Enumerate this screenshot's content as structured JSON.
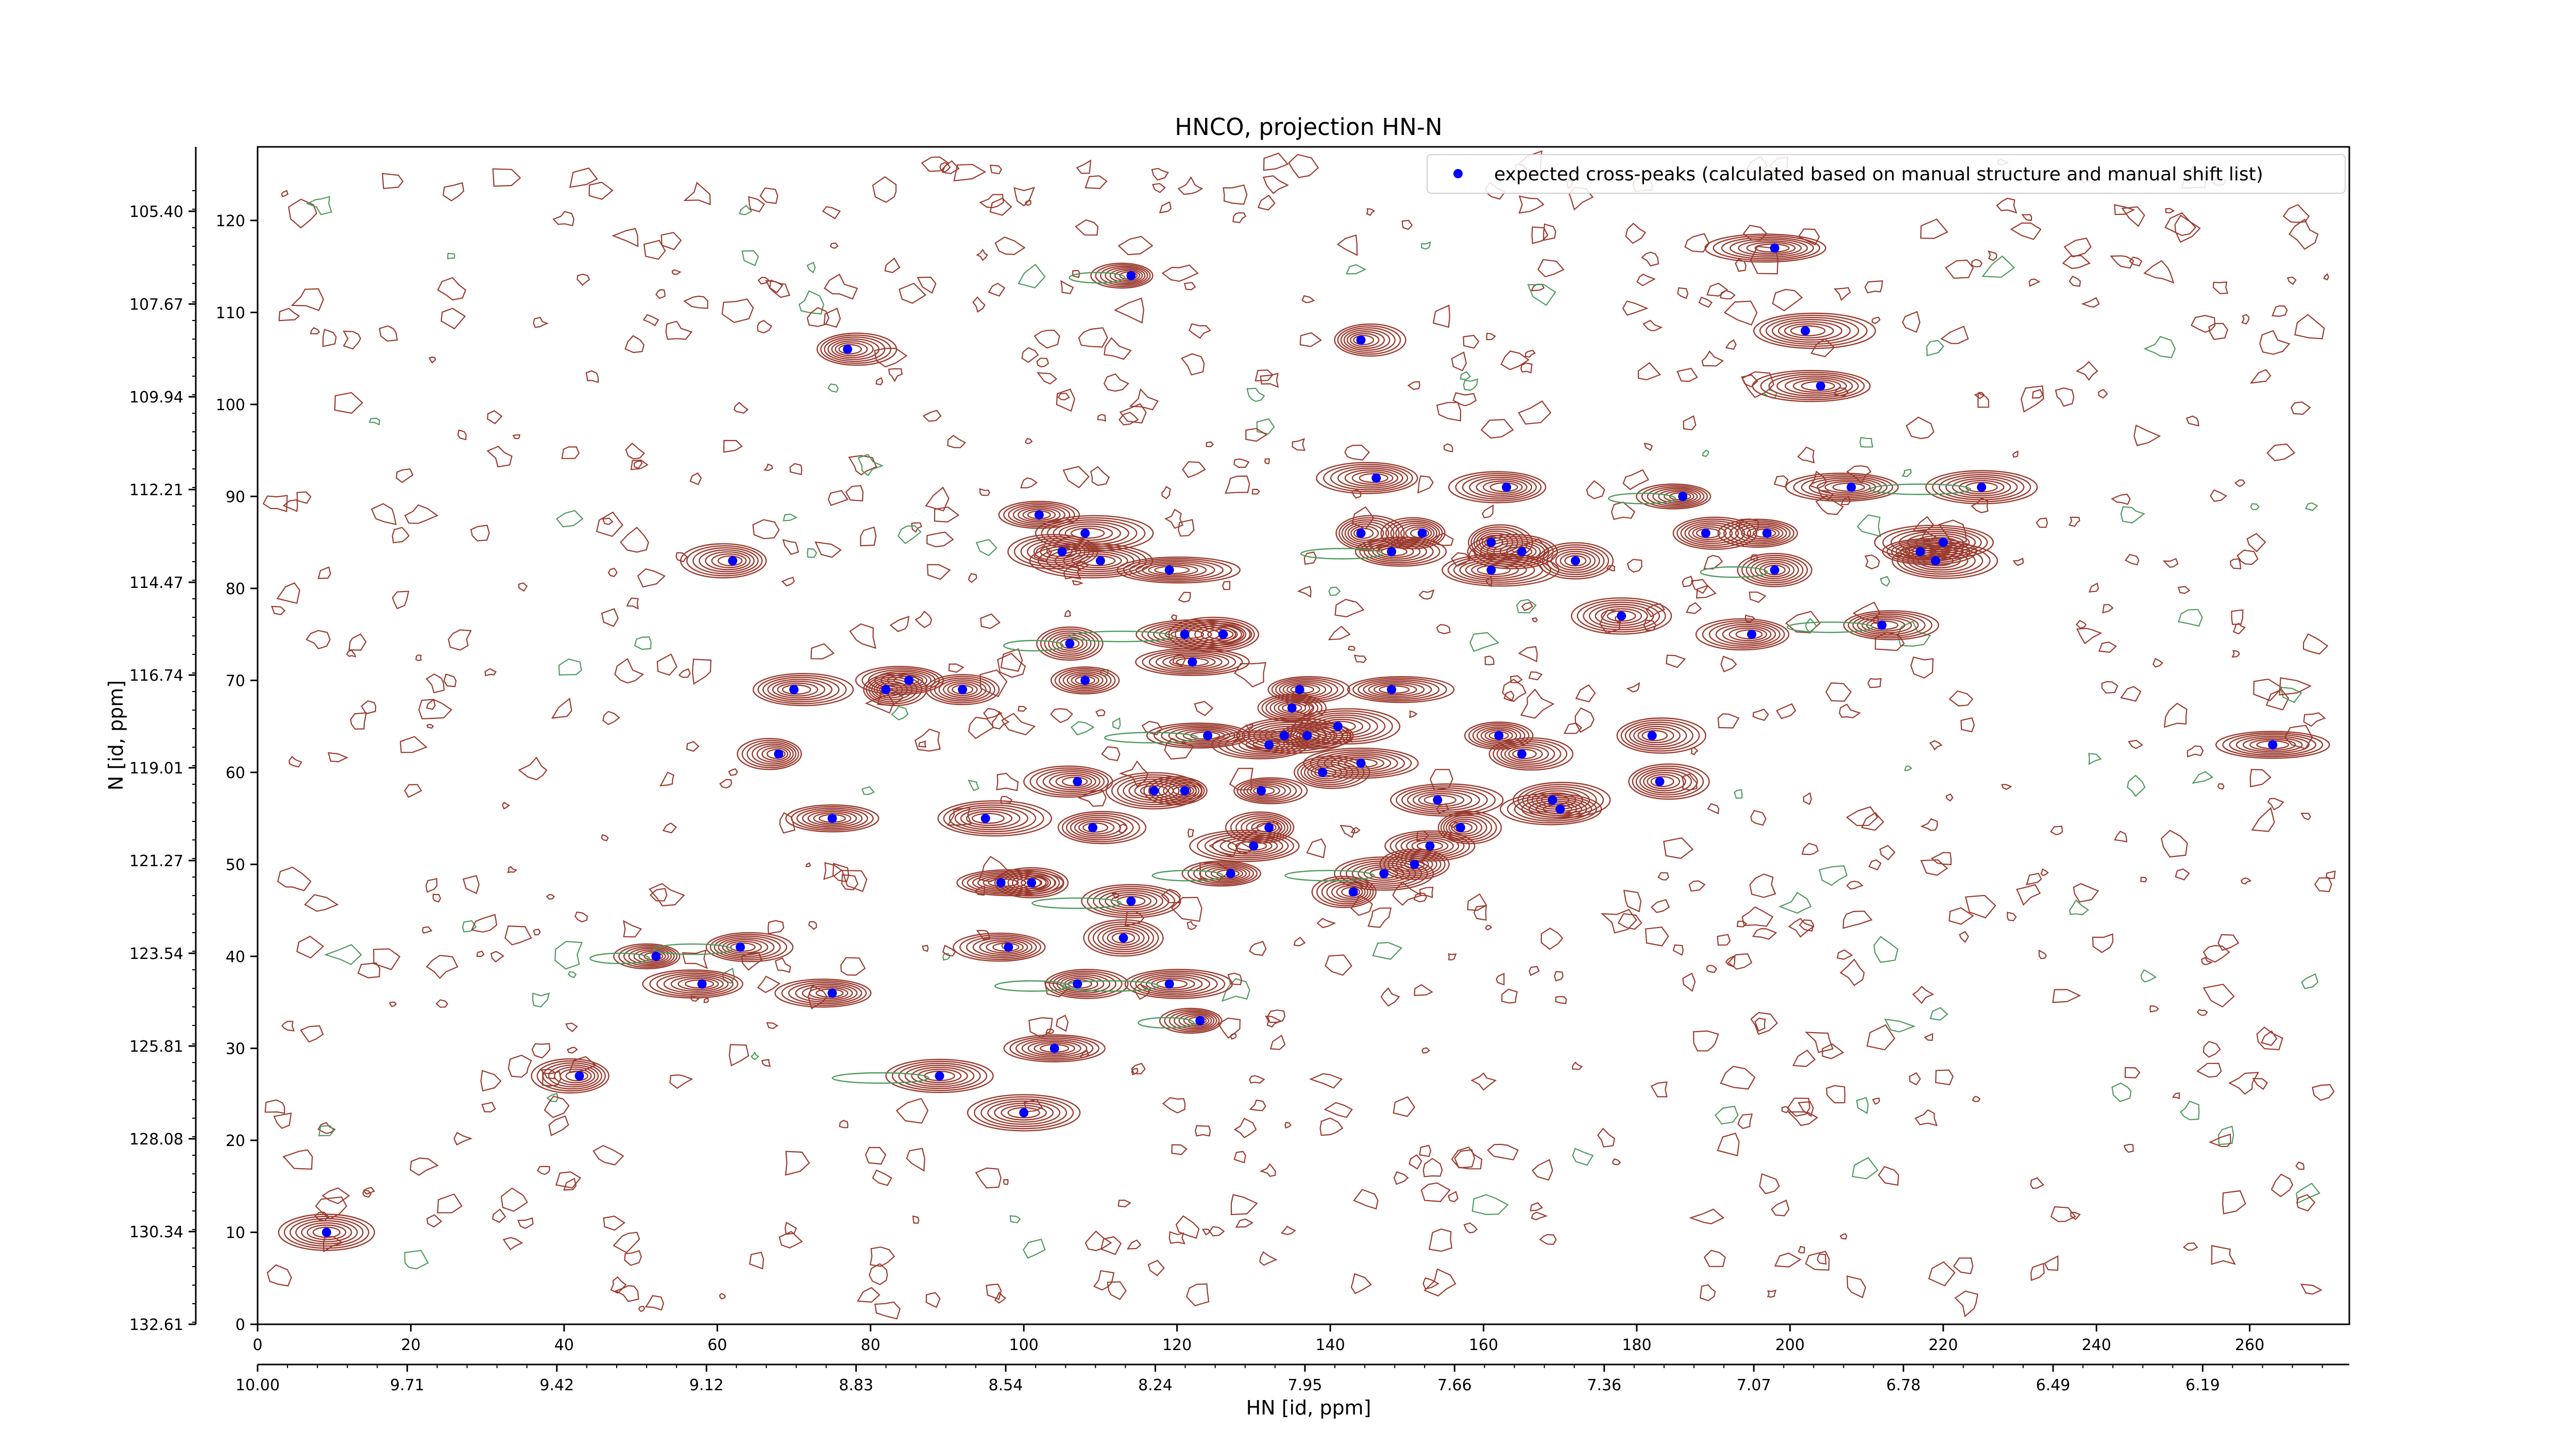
{
  "chart_data": {
    "type": "scatter",
    "title": "HNCO, projection HN-N",
    "xlabel": "HN [id, ppm]",
    "ylabel": "N [id, ppm]",
    "xlim": [
      0,
      273
    ],
    "ylim": [
      0,
      128
    ],
    "x_ticks": [
      0,
      20,
      40,
      60,
      80,
      100,
      120,
      140,
      160,
      180,
      200,
      220,
      240,
      260
    ],
    "y_ticks": [
      0,
      10,
      20,
      30,
      40,
      50,
      60,
      70,
      80,
      90,
      100,
      110,
      120
    ],
    "x_ppm_ticks": [
      "10.00",
      "9.71",
      "9.42",
      "9.12",
      "8.83",
      "8.54",
      "8.24",
      "7.95",
      "7.66",
      "7.36",
      "7.07",
      "6.78",
      "6.49",
      "6.19"
    ],
    "y_ppm_ticks": [
      "105.40",
      "107.67",
      "109.94",
      "112.21",
      "114.47",
      "116.74",
      "119.01",
      "121.27",
      "123.54",
      "125.81",
      "128.08",
      "130.34",
      "132.61"
    ],
    "legend": {
      "position": "top-right",
      "label": "expected cross-peaks (calculated based on manual structure and manual shift list)",
      "marker_color": "#0000ff"
    },
    "colors": {
      "positive_contour": "#9b3a2e",
      "negative_contour": "#4f9a5f",
      "peak_marker": "#0000ff"
    },
    "grid": false,
    "series": [
      {
        "name": "expected cross-peaks (calculated based on manual structure and manual shift list)",
        "points": [
          [
            9,
            10
          ],
          [
            42,
            27
          ],
          [
            52,
            40
          ],
          [
            58,
            37
          ],
          [
            63,
            41
          ],
          [
            62,
            83
          ],
          [
            68,
            62
          ],
          [
            70,
            69
          ],
          [
            75,
            55
          ],
          [
            75,
            36
          ],
          [
            77,
            106
          ],
          [
            82,
            69
          ],
          [
            85,
            70
          ],
          [
            89,
            27
          ],
          [
            92,
            69
          ],
          [
            95,
            55
          ],
          [
            97,
            48
          ],
          [
            98,
            41
          ],
          [
            100,
            23
          ],
          [
            101,
            48
          ],
          [
            102,
            88
          ],
          [
            104,
            30
          ],
          [
            105,
            84
          ],
          [
            106,
            74
          ],
          [
            107,
            37
          ],
          [
            107,
            59
          ],
          [
            108,
            70
          ],
          [
            108,
            86
          ],
          [
            109,
            54
          ],
          [
            110,
            83
          ],
          [
            113,
            42
          ],
          [
            114,
            46
          ],
          [
            114,
            114
          ],
          [
            117,
            58
          ],
          [
            119,
            37
          ],
          [
            119,
            82
          ],
          [
            121,
            58
          ],
          [
            121,
            75
          ],
          [
            122,
            72
          ],
          [
            123,
            33
          ],
          [
            124,
            64
          ],
          [
            126,
            75
          ],
          [
            127,
            49
          ],
          [
            130,
            52
          ],
          [
            131,
            58
          ],
          [
            132,
            63
          ],
          [
            132,
            54
          ],
          [
            134,
            64
          ],
          [
            135,
            67
          ],
          [
            136,
            69
          ],
          [
            137,
            64
          ],
          [
            139,
            60
          ],
          [
            141,
            65
          ],
          [
            143,
            47
          ],
          [
            144,
            86
          ],
          [
            144,
            61
          ],
          [
            144,
            107
          ],
          [
            146,
            92
          ],
          [
            147,
            49
          ],
          [
            148,
            84
          ],
          [
            148,
            69
          ],
          [
            151,
            50
          ],
          [
            152,
            86
          ],
          [
            153,
            52
          ],
          [
            154,
            57
          ],
          [
            157,
            54
          ],
          [
            161,
            85
          ],
          [
            161,
            82
          ],
          [
            162,
            64
          ],
          [
            163,
            91
          ],
          [
            165,
            84
          ],
          [
            165,
            62
          ],
          [
            169,
            57
          ],
          [
            170,
            56
          ],
          [
            172,
            83
          ],
          [
            178,
            77
          ],
          [
            182,
            64
          ],
          [
            183,
            59
          ],
          [
            186,
            90
          ],
          [
            189,
            86
          ],
          [
            195,
            75
          ],
          [
            197,
            86
          ],
          [
            198,
            82
          ],
          [
            198,
            117
          ],
          [
            202,
            108
          ],
          [
            204,
            102
          ],
          [
            208,
            91
          ],
          [
            212,
            76
          ],
          [
            217,
            84
          ],
          [
            219,
            83
          ],
          [
            220,
            85
          ],
          [
            225,
            91
          ],
          [
            263,
            63
          ]
        ]
      }
    ]
  }
}
